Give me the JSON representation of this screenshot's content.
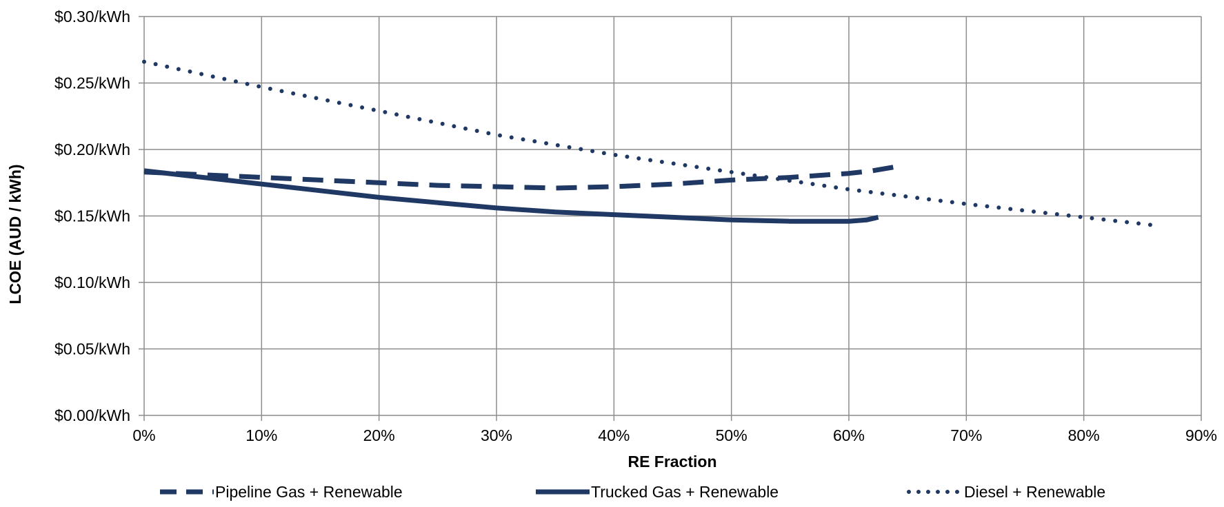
{
  "chart_data": {
    "type": "line",
    "title": "",
    "xlabel": "RE Fraction",
    "ylabel": "LCOE (AUD / kWh)",
    "xlim": [
      0,
      90
    ],
    "ylim": [
      0,
      0.3
    ],
    "grid": true,
    "legend_position": "bottom",
    "x_ticks": [
      {
        "value": 0,
        "label": "0%"
      },
      {
        "value": 10,
        "label": "10%"
      },
      {
        "value": 20,
        "label": "20%"
      },
      {
        "value": 30,
        "label": "30%"
      },
      {
        "value": 40,
        "label": "40%"
      },
      {
        "value": 50,
        "label": "50%"
      },
      {
        "value": 60,
        "label": "60%"
      },
      {
        "value": 70,
        "label": "70%"
      },
      {
        "value": 80,
        "label": "80%"
      },
      {
        "value": 90,
        "label": "90%"
      }
    ],
    "y_ticks": [
      {
        "value": 0.0,
        "label": "$0.00/kWh"
      },
      {
        "value": 0.05,
        "label": "$0.05/kWh"
      },
      {
        "value": 0.1,
        "label": "$0.10/kWh"
      },
      {
        "value": 0.15,
        "label": "$0.15/kWh"
      },
      {
        "value": 0.2,
        "label": "$0.20/kWh"
      },
      {
        "value": 0.25,
        "label": "$0.25/kWh"
      },
      {
        "value": 0.3,
        "label": "$0.30/kWh"
      }
    ],
    "series": [
      {
        "name": "Pipeline Gas + Renewable",
        "style": "dashed",
        "color": "#1f3864",
        "x": [
          0,
          5,
          10,
          15,
          20,
          25,
          30,
          35,
          40,
          45,
          50,
          55,
          60,
          62,
          64
        ],
        "y": [
          0.183,
          0.181,
          0.179,
          0.177,
          0.175,
          0.173,
          0.172,
          0.171,
          0.172,
          0.174,
          0.177,
          0.179,
          0.182,
          0.184,
          0.187
        ]
      },
      {
        "name": "Trucked Gas + Renewable",
        "style": "solid",
        "color": "#1f3864",
        "x": [
          0,
          5,
          10,
          15,
          20,
          25,
          30,
          35,
          40,
          45,
          50,
          55,
          60,
          61.5,
          62.5
        ],
        "y": [
          0.184,
          0.179,
          0.174,
          0.169,
          0.164,
          0.16,
          0.156,
          0.153,
          0.151,
          0.149,
          0.147,
          0.146,
          0.146,
          0.147,
          0.149
        ]
      },
      {
        "name": "Diesel + Renewable",
        "style": "dotted",
        "color": "#1f3864",
        "x": [
          0,
          10,
          20,
          30,
          40,
          50,
          60,
          70,
          80,
          86
        ],
        "y": [
          0.266,
          0.247,
          0.229,
          0.211,
          0.196,
          0.183,
          0.17,
          0.159,
          0.149,
          0.143
        ]
      }
    ]
  }
}
